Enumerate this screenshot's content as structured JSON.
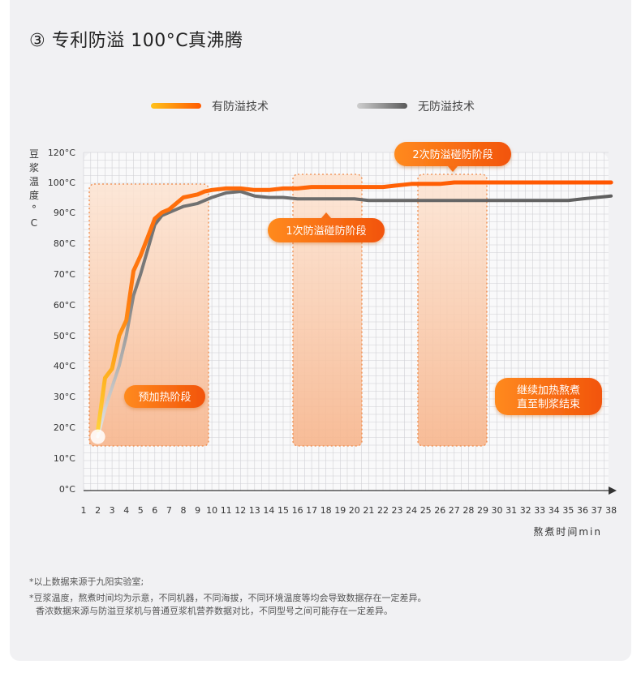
{
  "title": "③ 专利防溢 100°C真沸腾",
  "legend": [
    {
      "label": "有防溢技术",
      "color": "#ff7a10"
    },
    {
      "label": "无防溢技术",
      "color": "#666666"
    }
  ],
  "colors": {
    "accent": "#ff6a00",
    "gray_series": "#6e6e6e",
    "zone_fill": "#fde0cc",
    "zone_border": "#ee8a4a"
  },
  "chart_data": {
    "type": "line",
    "ylabel": "豆浆温度°C",
    "xlabel": "熬煮时间min",
    "y_ticks": [
      "120°C",
      "100°C",
      "90°C",
      "80°C",
      "70°C",
      "60°C",
      "50°C",
      "40°C",
      "30°C",
      "20°C",
      "10°C",
      "0°C"
    ],
    "x_ticks": [
      "1",
      "2",
      "3",
      "4",
      "5",
      "6",
      "7",
      "8",
      "9",
      "10",
      "11",
      "12",
      "13",
      "14",
      "15",
      "16",
      "17",
      "18",
      "19",
      "20",
      "21",
      "22",
      "23",
      "24",
      "25",
      "26",
      "27",
      "28",
      "29",
      "30",
      "31",
      "32",
      "33",
      "34",
      "35",
      "36",
      "37",
      "38"
    ],
    "ylim": [
      0,
      120
    ],
    "xlim": [
      1,
      38
    ],
    "grid": true,
    "series": [
      {
        "name": "有防溢技术",
        "color": "#ff7a10",
        "x": [
          2,
          2.5,
          3,
          3.5,
          4,
          4.5,
          5,
          5.5,
          6,
          6.5,
          7,
          7.5,
          8,
          8.5,
          9,
          9.5,
          10,
          11,
          12,
          13,
          14,
          15,
          16,
          17,
          18,
          19,
          20,
          21,
          22,
          23,
          24,
          25,
          26,
          27,
          28,
          29,
          30,
          31,
          32,
          33,
          34,
          35,
          36,
          37,
          38
        ],
        "y": [
          19,
          36,
          39,
          50,
          55,
          71,
          76,
          82,
          88,
          90,
          91,
          93,
          95,
          95.5,
          96,
          97,
          97.5,
          98,
          98,
          97.5,
          97.5,
          98,
          98,
          98.5,
          98.5,
          98.5,
          98.5,
          98.5,
          98.5,
          99,
          99.5,
          99.5,
          99.5,
          100,
          100,
          100,
          100,
          100,
          100,
          100,
          100,
          100,
          100,
          100,
          100
        ]
      },
      {
        "name": "无防溢技术",
        "color": "#6e6e6e",
        "x": [
          2,
          2.5,
          3,
          3.5,
          4,
          4.5,
          5,
          5.5,
          6,
          6.5,
          7,
          7.5,
          8,
          8.5,
          9,
          9.5,
          10,
          11,
          12,
          13,
          14,
          15,
          16,
          17,
          18,
          19,
          20,
          21,
          22,
          23,
          24,
          25,
          26,
          27,
          28,
          29,
          30,
          31,
          32,
          33,
          34,
          35,
          36,
          37,
          38
        ],
        "y": [
          17,
          26,
          33,
          40,
          50,
          63,
          70,
          78,
          86,
          89,
          90,
          91,
          92,
          92.5,
          93,
          94,
          95,
          96.5,
          97,
          95.5,
          95,
          95,
          94.5,
          94.5,
          94.5,
          94.5,
          94.5,
          94,
          94,
          94,
          94,
          94,
          94,
          94,
          94,
          94,
          94,
          94,
          94,
          94,
          94,
          94,
          94.5,
          95,
          95.5
        ]
      }
    ],
    "annotations": [
      {
        "text": "预加热阶段",
        "zone": [
          5.4,
          11.4
        ]
      },
      {
        "text": "1次防溢碰防阶段",
        "zone": [
          17,
          21.6
        ]
      },
      {
        "text": "2次防溢碰防阶段",
        "zone": [
          25.5,
          30.1
        ]
      },
      {
        "text": "继续加热熬煮\n直至制浆结束"
      }
    ]
  },
  "notes": [
    "*以上数据来源于九阳实验室;",
    "*豆浆温度，熬煮时间均为示意，不同机器，不同海拔，不同环境温度等均会导致数据存在一定差异。",
    "香浓数据来源与防溢豆浆机与普通豆浆机营养数据对比，不同型号之间可能存在一定差异。"
  ]
}
